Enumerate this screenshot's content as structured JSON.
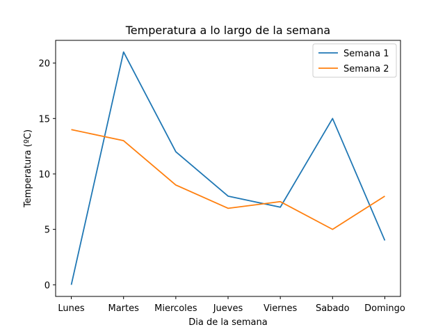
{
  "chart_data": {
    "type": "line",
    "title": "Temperatura a lo largo de la semana",
    "xlabel": "Dia de la semana",
    "ylabel": "Temperatura (ºC)",
    "categories": [
      "Lunes",
      "Martes",
      "Miercoles",
      "Jueves",
      "Viernes",
      "Sabado",
      "Domingo"
    ],
    "yticks": [
      0,
      5,
      10,
      15,
      20
    ],
    "ylim": [
      -1.05,
      22.05
    ],
    "grid": false,
    "legend_position": "top-right",
    "series": [
      {
        "name": "Semana 1",
        "color": "#1f77b4",
        "values": [
          0,
          21,
          12,
          8,
          7,
          15,
          4
        ]
      },
      {
        "name": "Semana 2",
        "color": "#ff7f0e",
        "values": [
          14,
          13,
          9,
          6.9,
          7.5,
          5,
          8
        ]
      }
    ]
  }
}
